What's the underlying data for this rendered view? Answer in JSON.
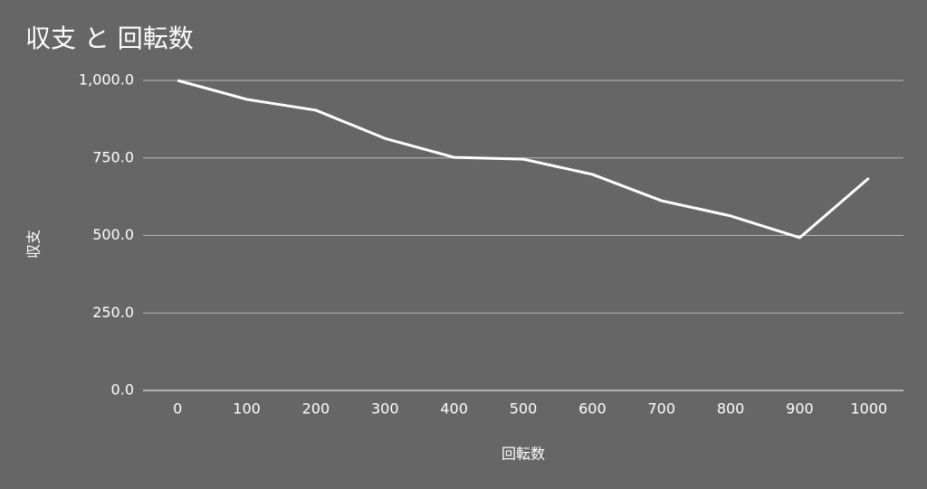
{
  "chart_data": {
    "type": "line",
    "title": "収支 と 回転数",
    "x_label": "回転数",
    "y_label": "収支",
    "categories": [
      "0",
      "100",
      "200",
      "300",
      "400",
      "500",
      "600",
      "700",
      "800",
      "900",
      "1000"
    ],
    "series": [
      {
        "name": "収支",
        "color": "#ffffff",
        "values": [
          1000,
          939,
          904,
          813,
          752,
          746,
          697,
          612,
          563,
          493,
          685
        ]
      }
    ],
    "ylim": [
      0,
      1000
    ],
    "yticks": [
      {
        "value": 0,
        "label": "0.0"
      },
      {
        "value": 250,
        "label": "250.0"
      },
      {
        "value": 500,
        "label": "500.0"
      },
      {
        "value": 750,
        "label": "750.0"
      },
      {
        "value": 1000,
        "label": "1,000.0"
      }
    ],
    "grid": true
  }
}
